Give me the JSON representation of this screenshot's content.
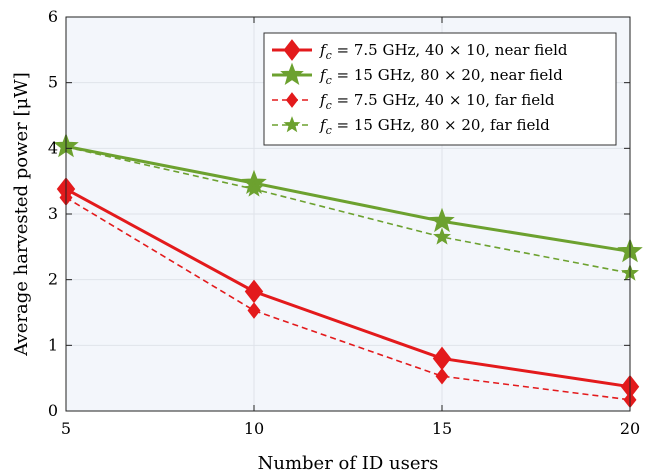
{
  "chart_data": {
    "type": "line",
    "xlabel": "Number of ID users",
    "ylabel": "Average harvested power [μW]",
    "x": [
      5,
      10,
      15,
      20
    ],
    "xlim": [
      5,
      20
    ],
    "ylim": [
      0,
      6
    ],
    "xticks": [
      "5",
      "10",
      "15",
      "20"
    ],
    "yticks": [
      "0",
      "1",
      "2",
      "3",
      "4",
      "5",
      "6"
    ],
    "grid": true,
    "legend_position": "top-right",
    "series": [
      {
        "name": "f_c = 7.5 GHz, 40 × 10, near field",
        "color": "#e31a1c",
        "style": "solid",
        "marker": "diamond",
        "values": [
          3.38,
          1.82,
          0.8,
          0.37
        ]
      },
      {
        "name": "f_c = 15 GHz, 80 × 20, near field",
        "color": "#6ca12f",
        "style": "solid",
        "marker": "star",
        "values": [
          4.03,
          3.47,
          2.89,
          2.43
        ]
      },
      {
        "name": "f_c = 7.5 GHz, 40 × 10, far field",
        "color": "#e31a1c",
        "style": "dashed",
        "marker": "diamond",
        "values": [
          3.25,
          1.53,
          0.53,
          0.17
        ]
      },
      {
        "name": "f_c = 15 GHz, 80 × 20, far field",
        "color": "#6ca12f",
        "style": "dashed",
        "marker": "star",
        "values": [
          4.02,
          3.38,
          2.65,
          2.1
        ]
      }
    ]
  }
}
